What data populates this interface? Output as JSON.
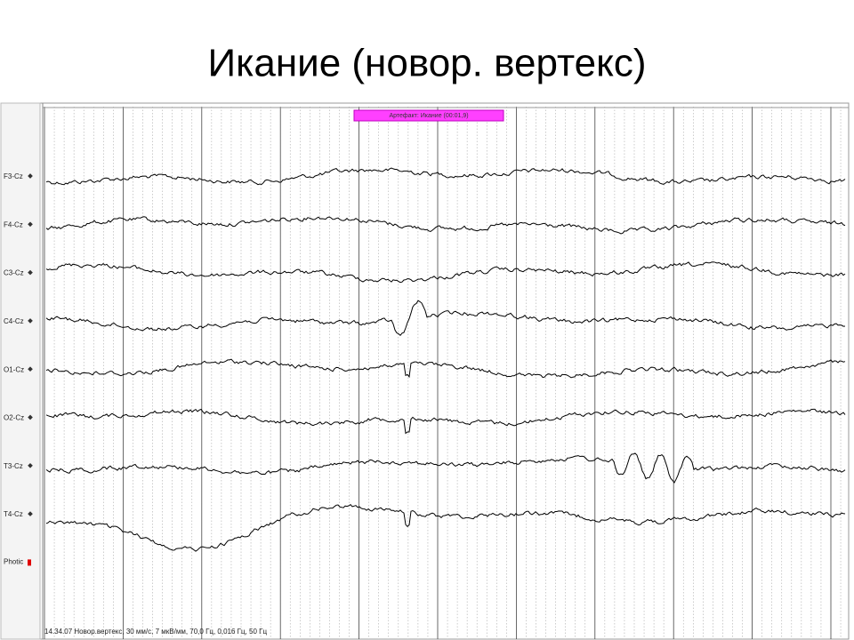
{
  "title": "Икание (новор. вертекс)",
  "eeg": {
    "channels": [
      "F3-Cz",
      "F4-Cz",
      "C3-Cz",
      "C4-Cz",
      "O1-Cz",
      "O2-Cz",
      "T3-Cz",
      "T4-Cz"
    ],
    "stimulus_channel": "Photic",
    "marker": "Артефакт: Икание (00:01,9)",
    "footer": "14.34.07 Новор.вертекс, 30 мм/с, 7 мкВ/мм, 70,0 Гц, 0,016 Гц, 50 Гц"
  }
}
